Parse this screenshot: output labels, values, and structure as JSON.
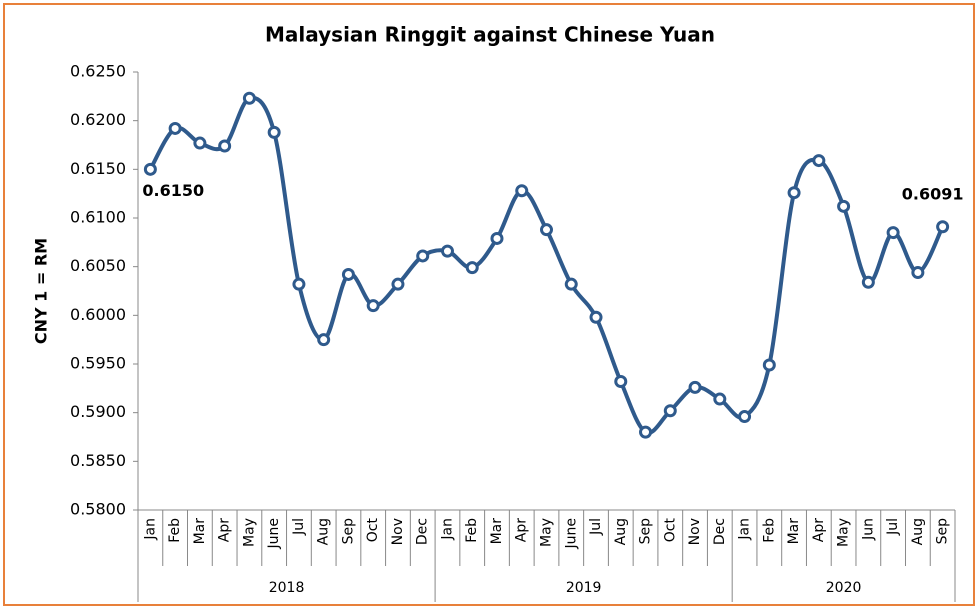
{
  "chart_data": {
    "type": "line",
    "title": "Malaysian Ringgit against Chinese Yuan",
    "y_label": "CNY 1 = RM",
    "groups": [
      {
        "label": "2018",
        "categories": [
          "Jan",
          "Feb",
          "Mar",
          "Apr",
          "May",
          "June",
          "Jul",
          "Aug",
          "Sep",
          "Oct",
          "Nov",
          "Dec"
        ]
      },
      {
        "label": "2019",
        "categories": [
          "Jan",
          "Feb",
          "Mar",
          "Apr",
          "May",
          "June",
          "Jul",
          "Aug",
          "Sep",
          "Oct",
          "Nov",
          "Dec"
        ]
      },
      {
        "label": "2020",
        "categories": [
          "Jan",
          "Feb",
          "Mar",
          "Apr",
          "May",
          "Jun",
          "Jul",
          "Aug",
          "Sep"
        ]
      }
    ],
    "series": [
      {
        "name": "CNY 1 = RM",
        "color": "#2f5a8c",
        "values": [
          0.615,
          0.6192,
          0.6177,
          0.6174,
          0.6223,
          0.6188,
          0.6032,
          0.5975,
          0.6042,
          0.601,
          0.6032,
          0.6061,
          0.6066,
          0.6049,
          0.6079,
          0.6128,
          0.6088,
          0.6032,
          0.5998,
          0.5932,
          0.588,
          0.5902,
          0.5926,
          0.5914,
          0.5896,
          0.5949,
          0.6126,
          0.6159,
          0.6112,
          0.6034,
          0.6085,
          0.6044,
          0.6091
        ],
        "value_labels": [
          "0.6150",
          null,
          null,
          null,
          null,
          null,
          null,
          null,
          null,
          null,
          null,
          null,
          null,
          null,
          null,
          null,
          null,
          null,
          null,
          null,
          null,
          null,
          null,
          null,
          null,
          null,
          null,
          null,
          null,
          null,
          null,
          null,
          "0.6091"
        ]
      }
    ],
    "ylim": [
      0.58,
      0.625
    ],
    "yticks": [
      {
        "value": 0.58,
        "label": "0.5800"
      },
      {
        "value": 0.585,
        "label": "0.5850"
      },
      {
        "value": 0.59,
        "label": "0.5900"
      },
      {
        "value": 0.595,
        "label": "0.5950"
      },
      {
        "value": 0.6,
        "label": "0.6000"
      },
      {
        "value": 0.605,
        "label": "0.6050"
      },
      {
        "value": 0.61,
        "label": "0.6100"
      },
      {
        "value": 0.615,
        "label": "0.6150"
      },
      {
        "value": 0.62,
        "label": "0.6200"
      },
      {
        "value": 0.625,
        "label": "0.6250"
      }
    ],
    "grid": false
  }
}
